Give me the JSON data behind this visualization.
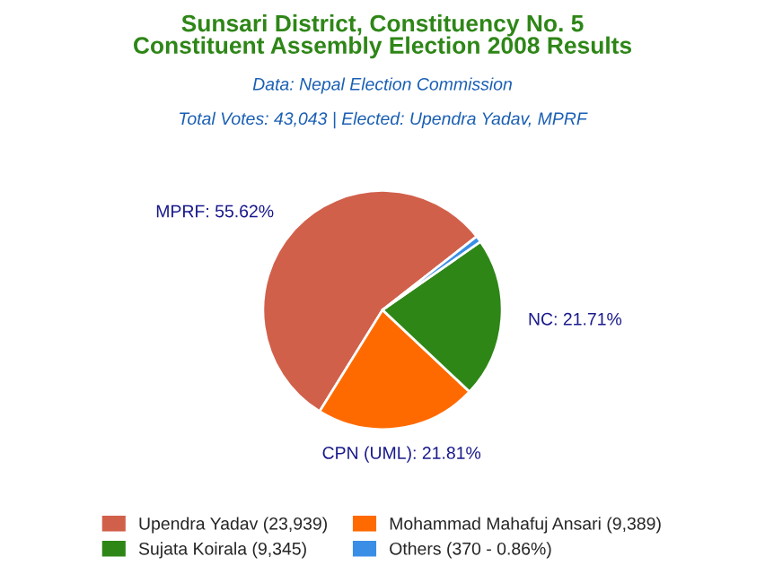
{
  "chart_data": {
    "type": "pie",
    "title": "Sunsari District, Constituency No. 5\nConstituent Assembly Election 2008 Results",
    "subtitle": "Data: Nepal Election Commission",
    "annotations": [
      "Total Votes: 43,043 | Elected: Upendra Yadav, MPRF"
    ],
    "categories": [
      "Upendra Yadav (23,939)",
      "Mohammad Mahafuj Ansari (9,389)",
      "Sujata Koirala (9,345)",
      "Others (370 - 0.86%)"
    ],
    "values": [
      55.62,
      21.81,
      21.71,
      0.86
    ],
    "colors": [
      "#d1604b",
      "#ff6a00",
      "#2e8617",
      "#3a8ee6"
    ],
    "value_labels": [
      "MPRF: 55.62%",
      "CPN (UML): 21.81%",
      "NC: 21.71%",
      null
    ],
    "legend": "bottom"
  }
}
